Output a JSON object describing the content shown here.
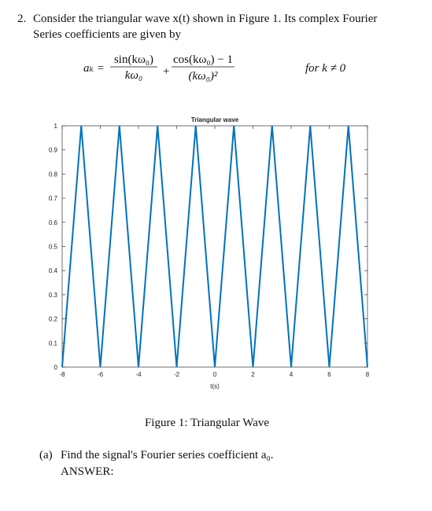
{
  "question": {
    "number": "2.",
    "line1": "Consider the triangular wave x(t) shown in Figure 1. Its complex Fourier",
    "line2": "Series coefficients are given by"
  },
  "formula": {
    "lhs": "aₖ =",
    "term1_num": "sin(kω₀)",
    "term1_den": "kω₀",
    "plus": "+",
    "term2_num": "cos(kω₀) − 1",
    "term2_den": "(kω₀)²",
    "condition": "for  k ≠ 0"
  },
  "chart_data": {
    "type": "line",
    "title": "Triangular wave",
    "x_label": "t(s)",
    "color": "#0072bd",
    "x": [
      -8,
      -7,
      -6,
      -5,
      -4,
      -3,
      -2,
      -1,
      0,
      1,
      2,
      3,
      4,
      5,
      6,
      7,
      8
    ],
    "values": [
      0,
      1,
      0,
      1,
      0,
      1,
      0,
      1,
      0,
      1,
      0,
      1,
      0,
      1,
      0,
      1,
      0
    ],
    "xlim": [
      -8,
      8
    ],
    "xticks": [
      -8,
      -6,
      -4,
      -2,
      0,
      2,
      4,
      6,
      8
    ],
    "ylim": [
      0,
      1
    ],
    "yticks": [
      0,
      0.1,
      0.2,
      0.3,
      0.4,
      0.5,
      0.6,
      0.7,
      0.8,
      0.9,
      1
    ],
    "grid": false
  },
  "figure_caption": "Figure 1: Triangular Wave",
  "part_a": {
    "label": "(a)",
    "text": "Find the signal's Fourier series coefficient a₀."
  },
  "answer_label": "ANSWER:"
}
